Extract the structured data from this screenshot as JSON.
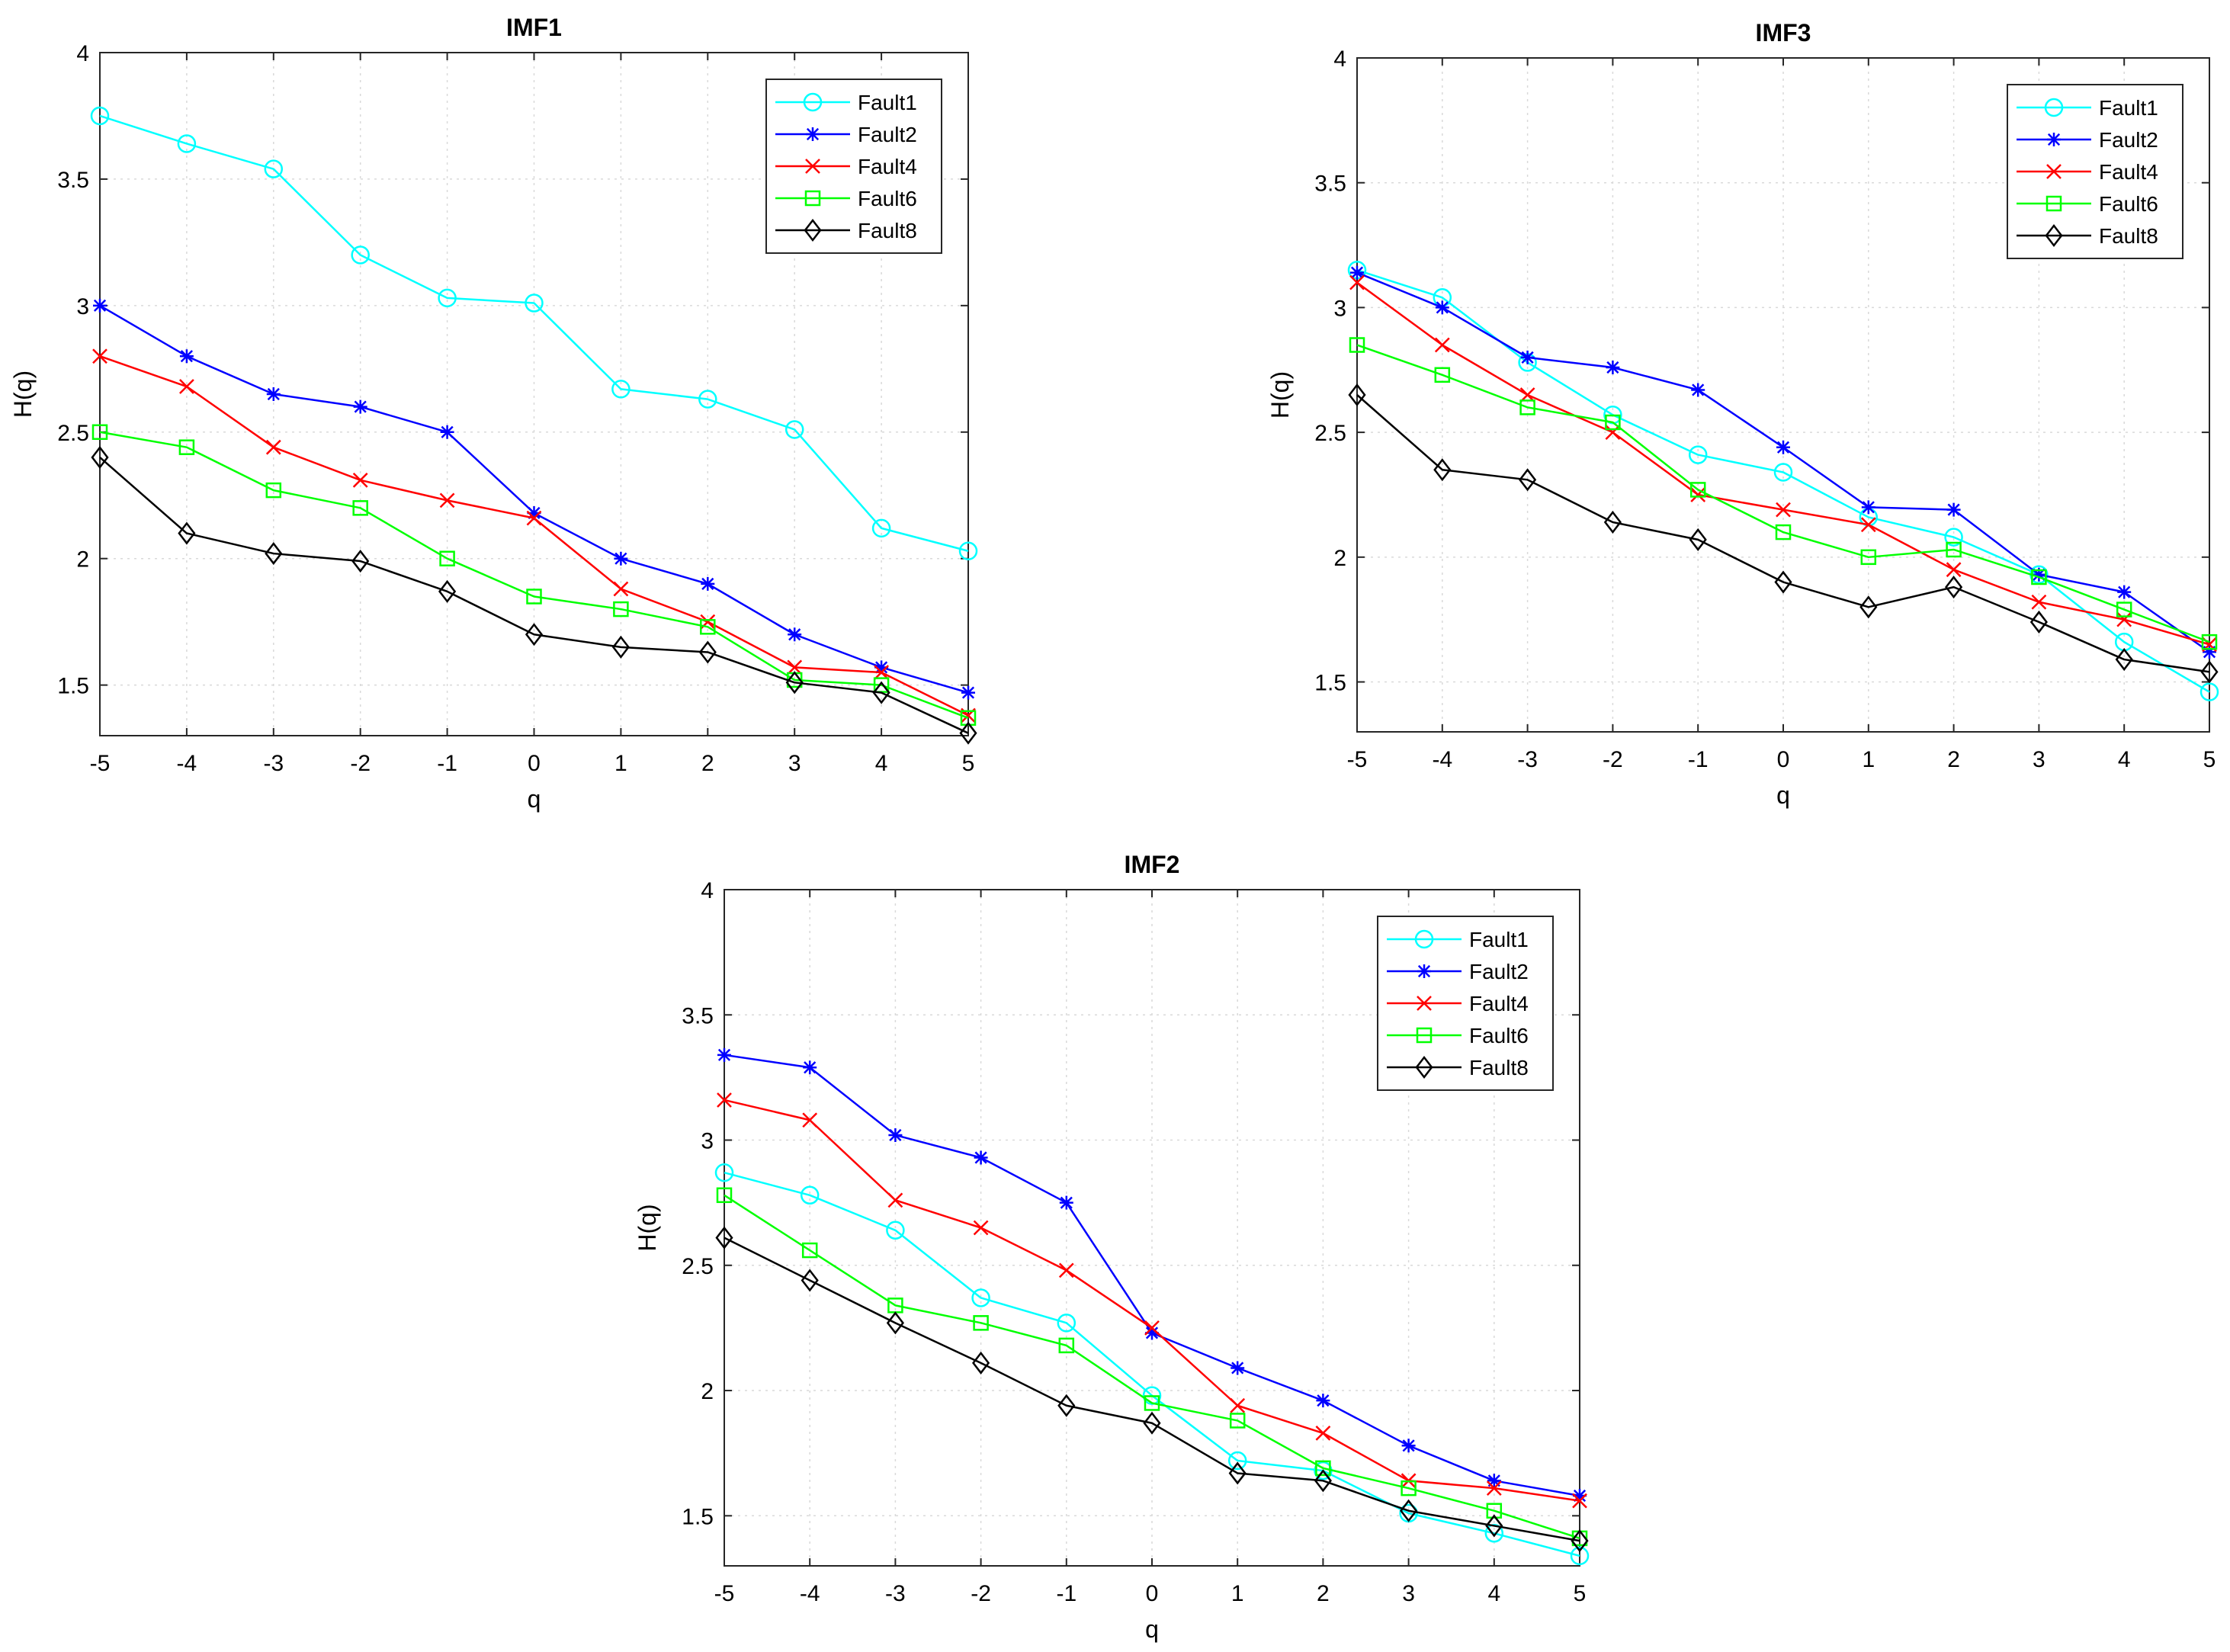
{
  "chart_data": [
    {
      "type": "line",
      "title": "IMF1",
      "xlabel": "q",
      "ylabel": "H(q)",
      "x": [
        -5,
        -4,
        -3,
        -2,
        -1,
        0,
        1,
        2,
        3,
        4,
        5
      ],
      "xlim": [
        -5,
        5
      ],
      "ylim": [
        1.3,
        4
      ],
      "xticks": [
        "-5",
        "-4",
        "-3",
        "-2",
        "-1",
        "0",
        "1",
        "2",
        "3",
        "4",
        "5"
      ],
      "yticks": [
        "1.5",
        "2",
        "2.5",
        "3",
        "3.5",
        "4"
      ],
      "grid": true,
      "legend_position": "top-right",
      "series": [
        {
          "name": "Fault1",
          "color": "#00ffff",
          "marker": "circle",
          "values": [
            3.75,
            3.64,
            3.54,
            3.2,
            3.03,
            3.01,
            2.67,
            2.63,
            2.51,
            2.12,
            2.03
          ]
        },
        {
          "name": "Fault2",
          "color": "#0000ff",
          "marker": "asterisk",
          "values": [
            3.0,
            2.8,
            2.65,
            2.6,
            2.5,
            2.18,
            2.0,
            1.9,
            1.7,
            1.57,
            1.47
          ]
        },
        {
          "name": "Fault4",
          "color": "#ff0000",
          "marker": "x",
          "values": [
            2.8,
            2.68,
            2.44,
            2.31,
            2.23,
            2.16,
            1.88,
            1.75,
            1.57,
            1.55,
            1.38
          ]
        },
        {
          "name": "Fault6",
          "color": "#00ff00",
          "marker": "square",
          "values": [
            2.5,
            2.44,
            2.27,
            2.2,
            2.0,
            1.85,
            1.8,
            1.73,
            1.52,
            1.5,
            1.37
          ]
        },
        {
          "name": "Fault8",
          "color": "#000000",
          "marker": "diamond",
          "values": [
            2.4,
            2.1,
            2.02,
            1.99,
            1.87,
            1.7,
            1.65,
            1.63,
            1.51,
            1.47,
            1.31
          ]
        }
      ]
    },
    {
      "type": "line",
      "title": "IMF3",
      "xlabel": "q",
      "ylabel": "H(q)",
      "x": [
        -5,
        -4,
        -3,
        -2,
        -1,
        0,
        1,
        2,
        3,
        4,
        5
      ],
      "xlim": [
        -5,
        5
      ],
      "ylim": [
        1.3,
        4
      ],
      "xticks": [
        "-5",
        "-4",
        "-3",
        "-2",
        "-1",
        "0",
        "1",
        "2",
        "3",
        "4",
        "5"
      ],
      "yticks": [
        "1.5",
        "2",
        "2.5",
        "3",
        "3.5",
        "4"
      ],
      "grid": true,
      "legend_position": "top-right",
      "series": [
        {
          "name": "Fault1",
          "color": "#00ffff",
          "marker": "circle",
          "values": [
            3.15,
            3.04,
            2.78,
            2.57,
            2.41,
            2.34,
            2.16,
            2.08,
            1.93,
            1.66,
            1.46
          ]
        },
        {
          "name": "Fault2",
          "color": "#0000ff",
          "marker": "asterisk",
          "values": [
            3.14,
            3.0,
            2.8,
            2.76,
            2.67,
            2.44,
            2.2,
            2.19,
            1.93,
            1.86,
            1.62
          ]
        },
        {
          "name": "Fault4",
          "color": "#ff0000",
          "marker": "x",
          "values": [
            3.1,
            2.85,
            2.65,
            2.5,
            2.25,
            2.19,
            2.13,
            1.95,
            1.82,
            1.75,
            1.65
          ]
        },
        {
          "name": "Fault6",
          "color": "#00ff00",
          "marker": "square",
          "values": [
            2.85,
            2.73,
            2.6,
            2.54,
            2.27,
            2.1,
            2.0,
            2.03,
            1.92,
            1.79,
            1.66
          ]
        },
        {
          "name": "Fault8",
          "color": "#000000",
          "marker": "diamond",
          "values": [
            2.65,
            2.35,
            2.31,
            2.14,
            2.07,
            1.9,
            1.8,
            1.88,
            1.74,
            1.59,
            1.54
          ]
        }
      ]
    },
    {
      "type": "line",
      "title": "IMF2",
      "xlabel": "q",
      "ylabel": "H(q)",
      "x": [
        -5,
        -4,
        -3,
        -2,
        -1,
        0,
        1,
        2,
        3,
        4,
        5
      ],
      "xlim": [
        -5,
        5
      ],
      "ylim": [
        1.3,
        4
      ],
      "xticks": [
        "-5",
        "-4",
        "-3",
        "-2",
        "-1",
        "0",
        "1",
        "2",
        "3",
        "4",
        "5"
      ],
      "yticks": [
        "1.5",
        "2",
        "2.5",
        "3",
        "3.5",
        "4"
      ],
      "grid": true,
      "legend_position": "top-right",
      "series": [
        {
          "name": "Fault1",
          "color": "#00ffff",
          "marker": "circle",
          "values": [
            2.87,
            2.78,
            2.64,
            2.37,
            2.27,
            1.98,
            1.72,
            1.68,
            1.51,
            1.43,
            1.34
          ]
        },
        {
          "name": "Fault2",
          "color": "#0000ff",
          "marker": "asterisk",
          "values": [
            3.34,
            3.29,
            3.02,
            2.93,
            2.75,
            2.23,
            2.09,
            1.96,
            1.78,
            1.64,
            1.58
          ]
        },
        {
          "name": "Fault4",
          "color": "#ff0000",
          "marker": "x",
          "values": [
            3.16,
            3.08,
            2.76,
            2.65,
            2.48,
            2.25,
            1.94,
            1.83,
            1.64,
            1.61,
            1.56
          ]
        },
        {
          "name": "Fault6",
          "color": "#00ff00",
          "marker": "square",
          "values": [
            2.78,
            2.56,
            2.34,
            2.27,
            2.18,
            1.95,
            1.88,
            1.69,
            1.61,
            1.52,
            1.41
          ]
        },
        {
          "name": "Fault8",
          "color": "#000000",
          "marker": "diamond",
          "values": [
            2.61,
            2.44,
            2.27,
            2.11,
            1.94,
            1.87,
            1.67,
            1.64,
            1.52,
            1.46,
            1.4
          ]
        }
      ]
    }
  ]
}
